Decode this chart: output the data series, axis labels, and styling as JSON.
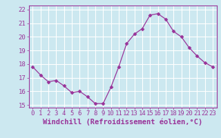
{
  "x": [
    0,
    1,
    2,
    3,
    4,
    5,
    6,
    7,
    8,
    9,
    10,
    11,
    12,
    13,
    14,
    15,
    16,
    17,
    18,
    19,
    20,
    21,
    22,
    23
  ],
  "y": [
    17.8,
    17.2,
    16.7,
    16.8,
    16.4,
    15.9,
    16.0,
    15.6,
    15.1,
    15.1,
    16.3,
    17.8,
    19.5,
    20.2,
    20.6,
    21.6,
    21.7,
    21.3,
    20.4,
    20.0,
    19.2,
    18.6,
    18.1,
    17.8
  ],
  "xlim": [
    -0.5,
    23.5
  ],
  "ylim": [
    14.8,
    22.3
  ],
  "xticks": [
    0,
    1,
    2,
    3,
    4,
    5,
    6,
    7,
    8,
    9,
    10,
    11,
    12,
    13,
    14,
    15,
    16,
    17,
    18,
    19,
    20,
    21,
    22,
    23
  ],
  "yticks": [
    15,
    16,
    17,
    18,
    19,
    20,
    21,
    22
  ],
  "xlabel": "Windchill (Refroidissement éolien,°C)",
  "line_color": "#993399",
  "marker": "D",
  "marker_size": 2.5,
  "bg_color": "#cce8f0",
  "grid_color": "#ffffff",
  "tick_label_fontsize": 6.5,
  "xlabel_fontsize": 7.5
}
